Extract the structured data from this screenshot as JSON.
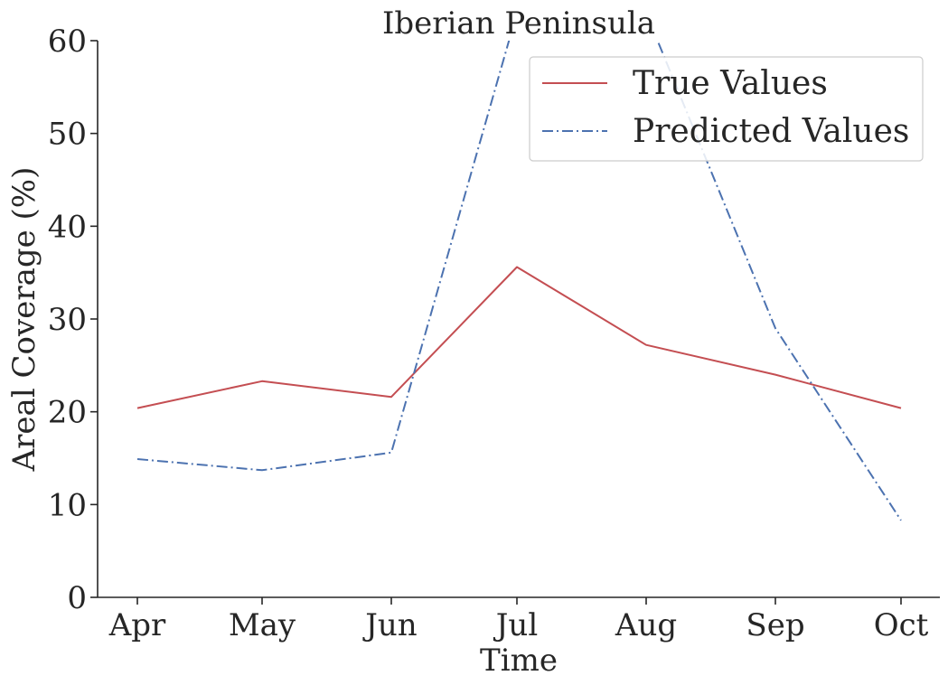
{
  "chart_data": {
    "type": "line",
    "title": "Iberian Peninsula",
    "xlabel": "Time",
    "ylabel": "Areal Coverage (%)",
    "categories": [
      "Apr",
      "May",
      "Jun",
      "Jul",
      "Aug",
      "Sep",
      "Oct"
    ],
    "ylim": [
      0,
      60
    ],
    "yticks": [
      "0",
      "10",
      "20",
      "30",
      "40",
      "50",
      "60"
    ],
    "grid": false,
    "legend_position": "top-right",
    "series": [
      {
        "name": "True Values",
        "color": "#c44e52",
        "line_style": "solid",
        "values": [
          20.4,
          23.3,
          21.6,
          35.6,
          27.2,
          24.0,
          20.4
        ]
      },
      {
        "name": "Predicted Values",
        "color": "#4c72b0",
        "line_style": "dashdot",
        "values": [
          14.9,
          13.7,
          15.6,
          63.0,
          63.0,
          29.0,
          8.3
        ]
      }
    ]
  }
}
